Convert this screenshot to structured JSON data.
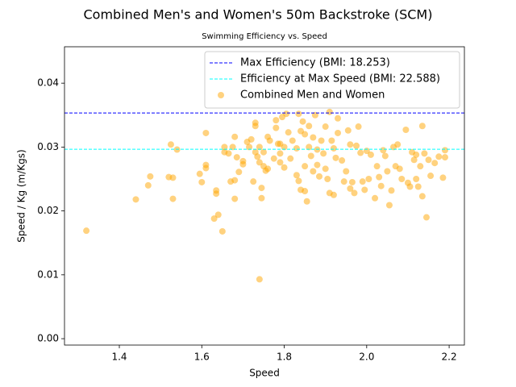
{
  "chart_data": {
    "type": "scatter",
    "title": "Combined Men's and Women's 50m Backstroke (SCM)",
    "subtitle": "Swimming Efficiency vs. Speed",
    "x_label": "Speed",
    "y_label": "Speed / Kg (m/Kgs)",
    "xlim": [
      1.267,
      2.237
    ],
    "ylim": [
      -0.001,
      0.0457
    ],
    "xticks": [
      1.4,
      1.6,
      1.8,
      {
        "value": 2.0,
        "label": "2.0"
      },
      2.2
    ],
    "yticks": [
      {
        "value": 0,
        "label": "0.00"
      },
      {
        "value": 0.01,
        "label": "0.01"
      },
      {
        "value": 0.02,
        "label": "0.02"
      },
      {
        "value": 0.03,
        "label": "0.03"
      },
      {
        "value": 0.04,
        "label": "0.04"
      }
    ],
    "legend": "upper right",
    "hlines": [
      {
        "name": "Max Efficiency (BMI: 18.253)",
        "value": 0.03533,
        "color": "#0000ff"
      },
      {
        "name": "Efficiency at Max Speed (BMI: 22.588)",
        "value": 0.02965,
        "color": "#00ffff"
      }
    ],
    "series": [
      {
        "name": "Combined Men and Women",
        "color": "#ffa500",
        "x": [
          1.32,
          1.44,
          1.47,
          1.475,
          1.52,
          1.525,
          1.53,
          1.53,
          1.54,
          1.595,
          1.6,
          1.61,
          1.61,
          1.61,
          1.63,
          1.635,
          1.635,
          1.64,
          1.65,
          1.655,
          1.655,
          1.665,
          1.67,
          1.675,
          1.68,
          1.68,
          1.68,
          1.685,
          1.69,
          1.7,
          1.7,
          1.71,
          1.715,
          1.72,
          1.725,
          1.73,
          1.73,
          1.73,
          1.735,
          1.74,
          1.74,
          1.74,
          1.745,
          1.745,
          1.75,
          1.75,
          1.755,
          1.76,
          1.76,
          1.765,
          1.775,
          1.78,
          1.78,
          1.785,
          1.79,
          1.79,
          1.79,
          1.795,
          1.8,
          1.8,
          1.805,
          1.81,
          1.815,
          1.82,
          1.83,
          1.83,
          1.835,
          1.835,
          1.84,
          1.84,
          1.845,
          1.85,
          1.85,
          1.85,
          1.855,
          1.86,
          1.86,
          1.865,
          1.87,
          1.87,
          1.875,
          1.88,
          1.88,
          1.885,
          1.89,
          1.895,
          1.9,
          1.9,
          1.905,
          1.91,
          1.91,
          1.915,
          1.92,
          1.92,
          1.925,
          1.93,
          1.93,
          1.94,
          1.945,
          1.95,
          1.955,
          1.96,
          1.96,
          1.965,
          1.97,
          1.975,
          1.98,
          1.985,
          1.99,
          1.995,
          2.0,
          2.005,
          2.01,
          2.02,
          2.025,
          2.03,
          2.035,
          2.04,
          2.045,
          2.05,
          2.055,
          2.06,
          2.065,
          2.07,
          2.075,
          2.08,
          2.085,
          2.095,
          2.1,
          2.105,
          2.11,
          2.115,
          2.12,
          2.12,
          2.125,
          2.13,
          2.135,
          2.135,
          2.14,
          2.145,
          2.15,
          2.155,
          2.165,
          2.175,
          2.185,
          2.19,
          2.19
        ],
        "values": [
          0.0169,
          0.0218,
          0.024,
          0.0254,
          0.0253,
          0.0304,
          0.0252,
          0.0219,
          0.0296,
          0.0258,
          0.0245,
          0.0322,
          0.0272,
          0.0267,
          0.0188,
          0.0227,
          0.0232,
          0.0194,
          0.0168,
          0.0292,
          0.03,
          0.029,
          0.0246,
          0.03,
          0.0316,
          0.0248,
          0.0219,
          0.0284,
          0.0261,
          0.0278,
          0.0273,
          0.0308,
          0.03,
          0.0312,
          0.0246,
          0.0338,
          0.0333,
          0.0292,
          0.0285,
          0.0093,
          0.03,
          0.0276,
          0.0236,
          0.022,
          0.0292,
          0.027,
          0.0263,
          0.0316,
          0.0266,
          0.031,
          0.0282,
          0.0342,
          0.033,
          0.0305,
          0.0305,
          0.029,
          0.0276,
          0.0347,
          0.03,
          0.0268,
          0.0352,
          0.0323,
          0.0282,
          0.031,
          0.0298,
          0.0256,
          0.0247,
          0.0352,
          0.0325,
          0.0233,
          0.034,
          0.032,
          0.027,
          0.0231,
          0.0215,
          0.0333,
          0.03,
          0.0286,
          0.0262,
          0.0315,
          0.035,
          0.0296,
          0.0272,
          0.0254,
          0.031,
          0.029,
          0.0332,
          0.0266,
          0.025,
          0.0355,
          0.0228,
          0.031,
          0.0225,
          0.0298,
          0.0283,
          0.0345,
          0.0322,
          0.0279,
          0.0246,
          0.0262,
          0.0326,
          0.0304,
          0.0235,
          0.0245,
          0.0228,
          0.0302,
          0.0332,
          0.0291,
          0.0246,
          0.0233,
          0.0294,
          0.025,
          0.0288,
          0.022,
          0.027,
          0.0253,
          0.0239,
          0.0295,
          0.0286,
          0.0262,
          0.0209,
          0.0232,
          0.03,
          0.027,
          0.0304,
          0.0266,
          0.025,
          0.0327,
          0.0244,
          0.0238,
          0.0292,
          0.028,
          0.025,
          0.0288,
          0.0238,
          0.027,
          0.0333,
          0.0223,
          0.029,
          0.019,
          0.028,
          0.0255,
          0.0275,
          0.0285,
          0.0252,
          0.0295,
          0.0284
        ]
      }
    ]
  }
}
